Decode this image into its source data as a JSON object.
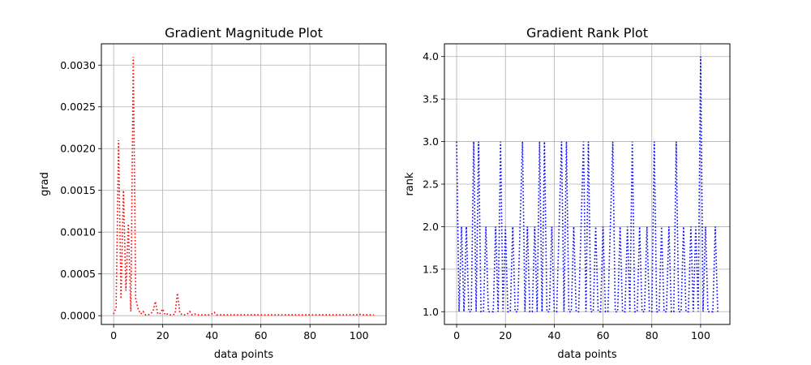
{
  "chart_data": [
    {
      "type": "line",
      "title": "Gradient Magnitude Plot",
      "xlabel": "data points",
      "ylabel": "grad",
      "xlim": [
        -5,
        111
      ],
      "ylim": [
        -0.000105,
        0.003255
      ],
      "xticks": [
        0,
        20,
        40,
        60,
        80,
        100
      ],
      "yticks": [
        0.0,
        0.0005,
        0.001,
        0.0015,
        0.002,
        0.0025,
        0.003
      ],
      "ytick_labels": [
        "0.0000",
        "0.0005",
        "0.0010",
        "0.0015",
        "0.0020",
        "0.0025",
        "0.0030"
      ],
      "grid": true,
      "series": [
        {
          "color": "#ff0000",
          "linestyle": "dotted",
          "x": [
            0,
            1,
            2,
            3,
            4,
            5,
            6,
            7,
            8,
            9,
            10,
            11,
            12,
            13,
            14,
            15,
            16,
            17,
            18,
            19,
            20,
            21,
            22,
            23,
            24,
            25,
            26,
            27,
            28,
            29,
            30,
            31,
            32,
            33,
            34,
            35,
            36,
            37,
            38,
            39,
            40,
            41,
            42,
            43,
            44,
            45,
            46,
            47,
            48,
            49,
            50,
            51,
            52,
            53,
            54,
            55,
            56,
            57,
            58,
            59,
            60,
            61,
            62,
            63,
            64,
            65,
            66,
            67,
            68,
            69,
            70,
            71,
            72,
            73,
            74,
            75,
            76,
            77,
            78,
            79,
            80,
            81,
            82,
            83,
            84,
            85,
            86,
            87,
            88,
            89,
            90,
            91,
            92,
            93,
            94,
            95,
            96,
            97,
            98,
            99,
            100,
            101,
            102,
            103,
            104,
            105,
            106
          ],
          "y": [
            2e-05,
            0.0001,
            0.0021,
            0.0002,
            0.0015,
            0.0003,
            0.0011,
            5e-05,
            0.0031,
            0.0002,
            8e-05,
            2e-05,
            5e-05,
            1e-05,
            1e-05,
            2e-05,
            5e-05,
            0.00017,
            2e-05,
            3e-05,
            8e-05,
            1e-05,
            2e-05,
            1e-05,
            1e-05,
            2e-05,
            0.00027,
            3e-05,
            1e-05,
            1e-05,
            2e-05,
            5e-05,
            1e-05,
            2e-05,
            1e-05,
            1e-05,
            1e-05,
            1e-05,
            1e-05,
            1e-05,
            2e-05,
            4e-05,
            1e-05,
            1e-05,
            1e-05,
            1e-05,
            1e-05,
            1e-05,
            1e-05,
            1e-05,
            1e-05,
            1e-05,
            1e-05,
            1e-05,
            1e-05,
            1e-05,
            1e-05,
            1e-05,
            1e-05,
            1e-05,
            1e-05,
            1e-05,
            1e-05,
            1e-05,
            1e-05,
            1e-05,
            1e-05,
            1e-05,
            1e-05,
            1e-05,
            1e-05,
            1e-05,
            1e-05,
            1e-05,
            1e-05,
            1e-05,
            1e-05,
            1e-05,
            1e-05,
            1e-05,
            1e-05,
            1e-05,
            1e-05,
            1e-05,
            1e-05,
            1e-05,
            1e-05,
            1e-05,
            1e-05,
            1e-05,
            1e-05,
            1e-05,
            1e-05,
            1e-05,
            1e-05,
            1e-05,
            1e-05,
            1e-05,
            1e-05,
            1e-05,
            2e-05,
            1e-05,
            1e-05,
            1e-05,
            1e-05,
            1e-05,
            1e-05
          ]
        }
      ]
    },
    {
      "type": "line",
      "title": "Gradient Rank Plot",
      "xlabel": "data points",
      "ylabel": "rank",
      "xlim": [
        -5,
        112
      ],
      "ylim": [
        0.85,
        4.15
      ],
      "xticks": [
        0,
        20,
        40,
        60,
        80,
        100
      ],
      "yticks": [
        1.0,
        1.5,
        2.0,
        2.5,
        3.0,
        3.5,
        4.0
      ],
      "ytick_labels": [
        "1.0",
        "1.5",
        "2.0",
        "2.5",
        "3.0",
        "3.5",
        "4.0"
      ],
      "grid": true,
      "series": [
        {
          "color": "#0000ff",
          "linestyle": "dotted",
          "x": [
            0,
            1,
            2,
            3,
            4,
            5,
            6,
            7,
            8,
            9,
            10,
            11,
            12,
            13,
            14,
            15,
            16,
            17,
            18,
            19,
            20,
            21,
            22,
            23,
            24,
            25,
            26,
            27,
            28,
            29,
            30,
            31,
            32,
            33,
            34,
            35,
            36,
            37,
            38,
            39,
            40,
            41,
            42,
            43,
            44,
            45,
            46,
            47,
            48,
            49,
            50,
            51,
            52,
            53,
            54,
            55,
            56,
            57,
            58,
            59,
            60,
            61,
            62,
            63,
            64,
            65,
            66,
            67,
            68,
            69,
            70,
            71,
            72,
            73,
            74,
            75,
            76,
            77,
            78,
            79,
            80,
            81,
            82,
            83,
            84,
            85,
            86,
            87,
            88,
            89,
            90,
            91,
            92,
            93,
            94,
            95,
            96,
            97,
            98,
            99,
            100,
            101,
            102,
            103,
            104,
            105,
            106,
            107
          ],
          "y": [
            3,
            1,
            2,
            1,
            2,
            1,
            1,
            3,
            1,
            3,
            1,
            1,
            2,
            1,
            1,
            1,
            2,
            1,
            3,
            1,
            2,
            1,
            1,
            2,
            1,
            1,
            2,
            3,
            1,
            2,
            1,
            1,
            2,
            1,
            3,
            1,
            3,
            1,
            1,
            2,
            1,
            1,
            2,
            3,
            1,
            3,
            1,
            1,
            2,
            1,
            1,
            2,
            3,
            1,
            3,
            1,
            1,
            2,
            1,
            1,
            2,
            1,
            1,
            2,
            3,
            1,
            1,
            2,
            1,
            1,
            2,
            1,
            3,
            1,
            1,
            2,
            1,
            1,
            2,
            1,
            1,
            3,
            1,
            1,
            2,
            1,
            1,
            2,
            1,
            1,
            3,
            1,
            1,
            2,
            1,
            1,
            2,
            1,
            2,
            1,
            4,
            1,
            2,
            1,
            1,
            1,
            2,
            1
          ]
        }
      ]
    }
  ]
}
